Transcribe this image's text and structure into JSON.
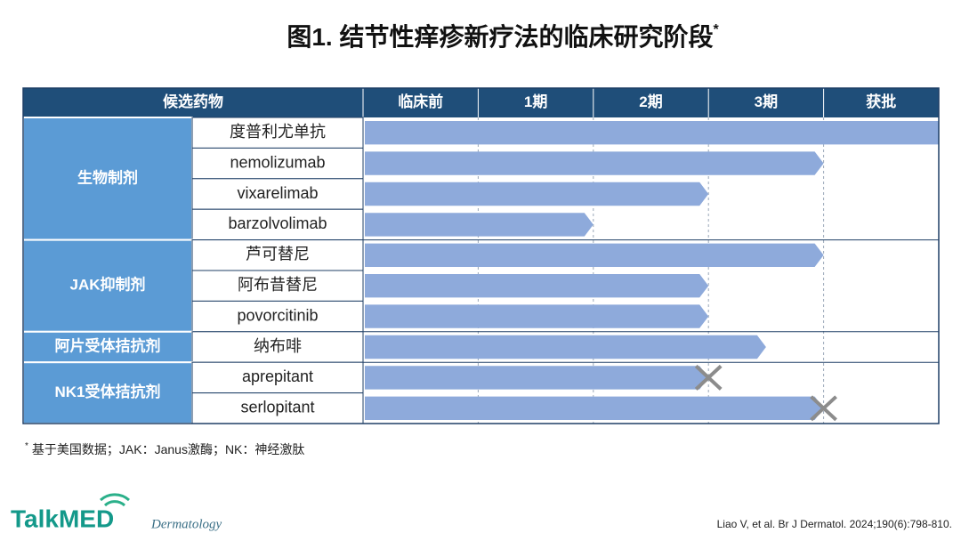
{
  "title": "图1. 结节性痒疹新疗法的临床研究阶段",
  "title_mark": "*",
  "table": {
    "header": "候选药物",
    "stages": [
      "临床前",
      "1期",
      "2期",
      "3期",
      "获批"
    ],
    "xlim": [
      0,
      5
    ],
    "groups": [
      {
        "name": "生物制剂",
        "drugs": [
          {
            "name": "度普利尤单抗",
            "progress": 5
          },
          {
            "name": "nemolizumab",
            "progress": 4
          },
          {
            "name": "vixarelimab",
            "progress": 3
          },
          {
            "name": "barzolvolimab",
            "progress": 2
          }
        ]
      },
      {
        "name": "JAK抑制剂",
        "drugs": [
          {
            "name": "芦可替尼",
            "progress": 4
          },
          {
            "name": "阿布昔替尼",
            "progress": 3
          },
          {
            "name": "povorcitinib",
            "progress": 3
          }
        ]
      },
      {
        "name": "阿片受体拮抗剂",
        "drugs": [
          {
            "name": "纳布啡",
            "progress": 3.5
          }
        ]
      },
      {
        "name": "NK1受体拮抗剂",
        "drugs": [
          {
            "name": "aprepitant",
            "progress": 3,
            "discontinued": true
          },
          {
            "name": "serlopitant",
            "progress": 4,
            "discontinued": true
          }
        ]
      }
    ]
  },
  "footnote_mark": "*",
  "footnote": "基于美国数据；JAK：Janus激酶；NK：神经激肽",
  "logo": "TalkMED",
  "logo_sub": "Dermatology",
  "citation": "Liao V, et al. Br J Dermatol. 2024;190(6):798-810."
}
